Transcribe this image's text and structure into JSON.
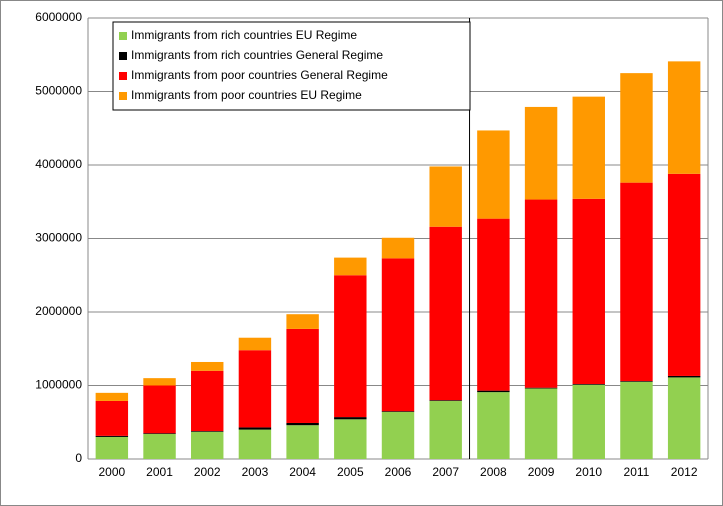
{
  "chart_data": {
    "type": "stacked-bar",
    "categories": [
      "2000",
      "2001",
      "2002",
      "2003",
      "2004",
      "2005",
      "2006",
      "2007",
      "2008",
      "2009",
      "2010",
      "2011",
      "2012"
    ],
    "series": [
      {
        "name": "Immigrants from rich countries EU Regime",
        "color": "#92d050",
        "values": [
          300000,
          340000,
          370000,
          400000,
          460000,
          540000,
          640000,
          790000,
          910000,
          960000,
          1010000,
          1050000,
          1110000
        ]
      },
      {
        "name": "Immigrants from rich countries General Regime",
        "color": "#000000",
        "values": [
          15000,
          10000,
          10000,
          30000,
          30000,
          30000,
          10000,
          10000,
          20000,
          10000,
          10000,
          10000,
          20000
        ]
      },
      {
        "name": "Immigrants from poor countries General Regime",
        "color": "#ff0000",
        "values": [
          475000,
          650000,
          820000,
          1050000,
          1280000,
          1930000,
          2080000,
          2360000,
          2340000,
          2560000,
          2520000,
          2700000,
          2750000
        ]
      },
      {
        "name": "Immigrants from poor countries EU Regime",
        "color": "#ff9900",
        "values": [
          110000,
          100000,
          120000,
          170000,
          200000,
          240000,
          280000,
          820000,
          1200000,
          1260000,
          1390000,
          1490000,
          1530000
        ]
      }
    ],
    "ylim": [
      0,
      6000000
    ],
    "yticks": [
      0,
      1000000,
      2000000,
      3000000,
      4000000,
      5000000,
      6000000
    ],
    "grid": true,
    "legend": "top-left"
  }
}
